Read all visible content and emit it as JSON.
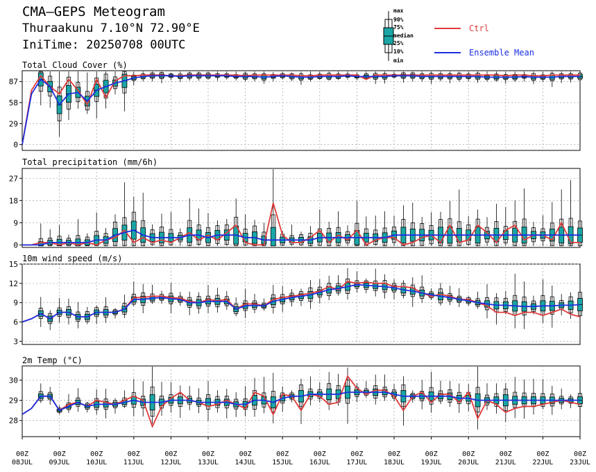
{
  "header": {
    "title": "CMA—GEPS Meteogram",
    "station": "Thuraakunu 7.10°N 72.90°E",
    "initime": "IniTime: 20250708 00UTC"
  },
  "legend": {
    "box_labels": [
      "max",
      "90%",
      "75%",
      "median",
      "25%",
      "10%",
      "min"
    ],
    "ctrl_label": "Ctrl",
    "mean_label": "Ensemble Mean",
    "ctrl_color": "#e03a3a",
    "mean_color": "#1a2ee0",
    "box_fill": "#1aa6a6"
  },
  "x_axis": {
    "time_label": "00Z",
    "dates": [
      "08JUL",
      "09JUL",
      "10JUL",
      "11JUL",
      "12JUL",
      "13JUL",
      "14JUL",
      "15JUL",
      "16JUL",
      "17JUL",
      "18JUL",
      "19JUL",
      "20JUL",
      "21JUL",
      "22JUL",
      "23JUL"
    ]
  },
  "chart_data": [
    {
      "type": "box",
      "title": "Total Cloud Cover (%)",
      "ylim": [
        -8,
        102
      ],
      "yticks": [
        0,
        29,
        58,
        87
      ],
      "ctrl": [
        0,
        75,
        95,
        80,
        70,
        90,
        75,
        55,
        90,
        65,
        88,
        95,
        95,
        96,
        96,
        96,
        95,
        95,
        96,
        96,
        96,
        96,
        96,
        96,
        95,
        96,
        96,
        96,
        96,
        96,
        95,
        95,
        96,
        96,
        96,
        96,
        96,
        90,
        96,
        96,
        96,
        96,
        96,
        96,
        96,
        96,
        96,
        96,
        96,
        96,
        96,
        96,
        95,
        96,
        96,
        95,
        95,
        96,
        96,
        96,
        96
      ],
      "mean": [
        0,
        70,
        90,
        80,
        55,
        70,
        72,
        60,
        75,
        80,
        85,
        88,
        92,
        94,
        95,
        95,
        95,
        94,
        95,
        95,
        95,
        95,
        95,
        94,
        94,
        94,
        93,
        94,
        95,
        94,
        93,
        93,
        94,
        94,
        94,
        95,
        94,
        94,
        94,
        94,
        95,
        95,
        95,
        94,
        94,
        94,
        94,
        94,
        94,
        94,
        93,
        93,
        93,
        93,
        94,
        93,
        93,
        93,
        94,
        94,
        94
      ]
    },
    {
      "type": "box",
      "title": "Total precipitation (mm/6h)",
      "ylim": [
        -1,
        31
      ],
      "yticks": [
        0,
        9,
        18,
        27
      ],
      "ctrl": [
        0,
        0,
        1,
        1,
        0,
        1,
        0,
        1,
        0,
        2,
        3,
        6,
        1,
        3,
        1,
        2,
        1,
        3,
        5,
        2,
        4,
        2,
        5,
        8,
        1,
        0,
        0,
        17,
        4,
        1,
        1,
        3,
        6,
        1,
        4,
        2,
        6,
        0,
        2,
        3,
        3,
        0,
        1,
        3,
        4,
        1,
        8,
        1,
        2,
        8,
        5,
        1,
        6,
        8,
        2,
        4,
        4,
        2,
        9,
        1,
        1
      ],
      "mean": [
        0,
        0,
        0,
        1,
        1,
        1,
        1,
        1,
        2,
        2,
        4,
        5,
        6,
        4,
        3,
        3,
        3,
        3,
        4,
        4,
        3,
        4,
        4,
        4,
        3,
        3,
        2,
        2,
        2,
        2,
        2,
        2,
        3,
        3,
        3,
        3,
        3,
        3,
        3,
        3,
        4,
        4,
        4,
        4,
        4,
        4,
        4,
        4,
        4,
        4,
        4,
        4,
        4,
        4,
        4,
        4,
        4,
        4,
        4,
        4,
        4
      ]
    },
    {
      "type": "box",
      "title": "10m wind speed (m/s)",
      "ylim": [
        2.5,
        15
      ],
      "yticks": [
        3,
        6,
        9,
        12,
        15
      ],
      "ctrl": [
        6,
        6.5,
        7.3,
        6.5,
        7.5,
        7.5,
        6.8,
        6.8,
        7.5,
        7.5,
        7.5,
        8,
        9.8,
        9.8,
        10,
        10,
        9.8,
        9.7,
        9.2,
        9,
        9.5,
        9.3,
        9.5,
        8,
        8.8,
        8.8,
        8.5,
        9.5,
        9.8,
        10,
        10.2,
        10.5,
        10.8,
        11.5,
        11,
        12.3,
        12,
        12.2,
        12,
        12,
        11.5,
        11.5,
        11.3,
        10.5,
        10,
        10.3,
        10,
        9.5,
        9.5,
        9,
        8.5,
        7.5,
        7.5,
        7,
        7.5,
        7.5,
        7,
        7.5,
        8,
        7.2,
        6.8
      ],
      "mean": [
        6,
        6.5,
        7.3,
        6.5,
        7.5,
        7.5,
        6.8,
        6.8,
        7.5,
        7.5,
        7.5,
        8,
        9.5,
        9.5,
        9.7,
        9.8,
        9.6,
        9.5,
        9,
        9,
        9.2,
        9.2,
        9.2,
        8,
        8.5,
        8.6,
        8.5,
        9.2,
        9.5,
        9.8,
        10,
        10.2,
        10.6,
        11,
        11.2,
        11.5,
        11.8,
        11.7,
        11.6,
        11.5,
        11.3,
        11,
        10.8,
        10.5,
        10.2,
        10,
        9.8,
        9.5,
        9.3,
        9,
        8.8,
        8.6,
        8.6,
        8.5,
        8.4,
        8.4,
        8.5,
        8.5,
        8.6,
        8.6,
        8.7
      ]
    },
    {
      "type": "box",
      "title": "2m Temp (°C)",
      "ylim": [
        27.2,
        30.7
      ],
      "yticks": [
        28,
        29,
        30
      ],
      "ctrl": [
        28.3,
        28.6,
        29.2,
        29.2,
        28.5,
        28.8,
        28.9,
        28.7,
        29.0,
        28.9,
        28.8,
        29.0,
        29.2,
        29.0,
        27.7,
        28.7,
        29.1,
        29.4,
        29.0,
        28.9,
        28.7,
        28.8,
        29.0,
        28.8,
        28.6,
        29.4,
        29.2,
        28.3,
        29.3,
        29.2,
        28.5,
        29.3,
        29.2,
        28.8,
        28.9,
        30.2,
        29.6,
        29.3,
        29.5,
        29.5,
        29.2,
        28.5,
        29.2,
        29.4,
        28.9,
        29.3,
        29.3,
        28.9,
        29.4,
        28.1,
        29.0,
        28.8,
        28.4,
        28.6,
        28.7,
        28.7,
        28.8,
        28.9,
        29.0,
        28.9,
        28.8
      ],
      "mean": [
        28.3,
        28.6,
        29.2,
        29.2,
        28.5,
        28.7,
        28.9,
        28.7,
        28.8,
        28.8,
        28.8,
        28.9,
        29.0,
        28.9,
        28.9,
        28.9,
        29.0,
        29.0,
        29.0,
        28.9,
        28.9,
        28.9,
        28.9,
        28.8,
        28.8,
        29.0,
        29.0,
        28.9,
        29.1,
        29.2,
        29.2,
        29.3,
        29.3,
        29.3,
        29.3,
        29.4,
        29.4,
        29.4,
        29.4,
        29.4,
        29.3,
        29.2,
        29.2,
        29.2,
        29.2,
        29.2,
        29.2,
        29.1,
        29.1,
        29.0,
        29.0,
        29.0,
        29.0,
        29.0,
        29.0,
        29.0,
        29.0,
        29.0,
        29.0,
        29.0,
        29.0
      ]
    }
  ]
}
